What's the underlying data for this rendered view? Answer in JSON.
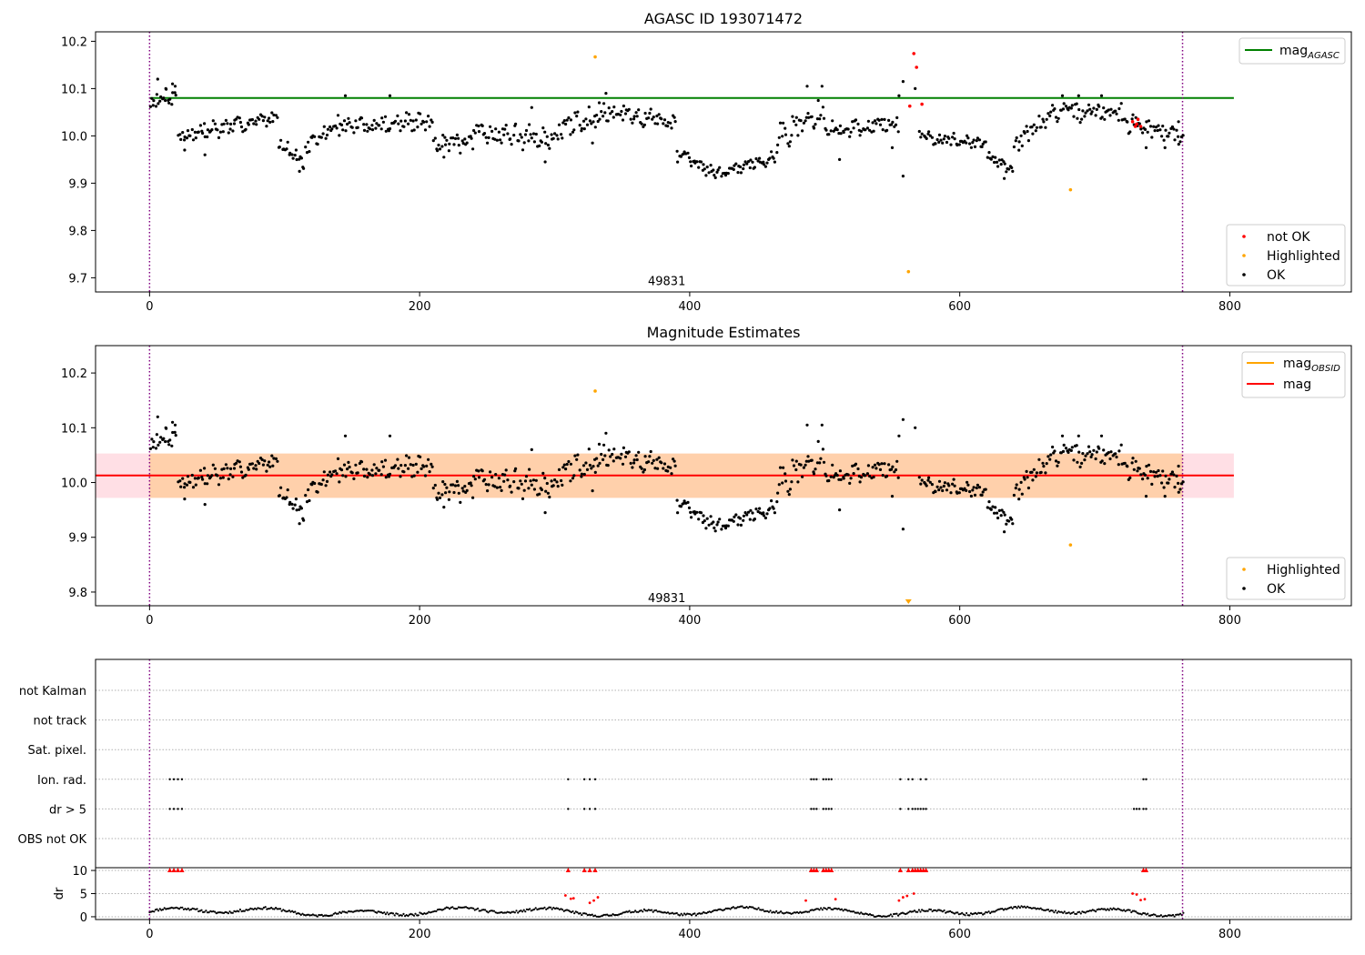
{
  "chart_data": [
    {
      "type": "scatter",
      "title": "AGASC ID 193071472",
      "xlim": [
        -40,
        890
      ],
      "ylim": [
        9.67,
        10.22
      ],
      "xticks": [
        0,
        200,
        400,
        600,
        800
      ],
      "yticks": [
        9.7,
        9.8,
        9.9,
        10.0,
        10.1,
        10.2
      ],
      "ytick_format": 1,
      "vlines": [
        0,
        765
      ],
      "vline_color": "#800080",
      "annotation": {
        "text": "49831",
        "x": 383,
        "y": 9.694
      },
      "hline": {
        "name": "mag",
        "sub": "AGASC",
        "y": 10.08,
        "x_start": 0,
        "x_end": 803,
        "color": "#008000"
      },
      "legend_upper": [
        {
          "name": "mag",
          "sub": "AGASC",
          "color": "#008000"
        }
      ],
      "legend_lower": [
        {
          "name": "not OK",
          "color": "#ff0000"
        },
        {
          "name": "Highlighted",
          "color": "#ffa500"
        },
        {
          "name": "OK",
          "color": "#000000"
        }
      ],
      "series_ok_segments": [
        {
          "x0": 0,
          "x1": 20,
          "v0": 10.07,
          "v1": 10.09,
          "noise": 0.02
        },
        {
          "x0": 21,
          "x1": 60,
          "v0": 10.0,
          "v1": 10.02,
          "noise": 0.02
        },
        {
          "x0": 60,
          "x1": 95,
          "v0": 10.02,
          "v1": 10.04,
          "noise": 0.015
        },
        {
          "x0": 95,
          "x1": 115,
          "v0": 9.99,
          "v1": 9.94,
          "noise": 0.015
        },
        {
          "x0": 115,
          "x1": 140,
          "v0": 9.97,
          "v1": 10.03,
          "noise": 0.02
        },
        {
          "x0": 140,
          "x1": 210,
          "v0": 10.02,
          "v1": 10.03,
          "noise": 0.02
        },
        {
          "x0": 210,
          "x1": 240,
          "v0": 9.99,
          "v1": 9.98,
          "noise": 0.02
        },
        {
          "x0": 240,
          "x1": 300,
          "v0": 10.01,
          "v1": 9.99,
          "noise": 0.025
        },
        {
          "x0": 300,
          "x1": 335,
          "v0": 10.01,
          "v1": 10.05,
          "noise": 0.025
        },
        {
          "x0": 335,
          "x1": 390,
          "v0": 10.05,
          "v1": 10.03,
          "noise": 0.02
        },
        {
          "x0": 390,
          "x1": 420,
          "v0": 9.96,
          "v1": 9.92,
          "noise": 0.015
        },
        {
          "x0": 420,
          "x1": 465,
          "v0": 9.92,
          "v1": 9.96,
          "noise": 0.015
        },
        {
          "x0": 465,
          "x1": 500,
          "v0": 10.0,
          "v1": 10.05,
          "noise": 0.03
        },
        {
          "x0": 500,
          "x1": 555,
          "v0": 10.01,
          "v1": 10.03,
          "noise": 0.02
        },
        {
          "x0": 570,
          "x1": 620,
          "v0": 10.0,
          "v1": 9.98,
          "noise": 0.015
        },
        {
          "x0": 620,
          "x1": 640,
          "v0": 9.96,
          "v1": 9.93,
          "noise": 0.015
        },
        {
          "x0": 640,
          "x1": 665,
          "v0": 9.98,
          "v1": 10.04,
          "noise": 0.02
        },
        {
          "x0": 665,
          "x1": 720,
          "v0": 10.05,
          "v1": 10.05,
          "noise": 0.02
        },
        {
          "x0": 720,
          "x1": 766,
          "v0": 10.03,
          "v1": 10.0,
          "noise": 0.02
        }
      ],
      "series_ok_points": [
        {
          "x": 6,
          "y": 10.12
        },
        {
          "x": 12,
          "y": 10.1
        },
        {
          "x": 17,
          "y": 10.11
        },
        {
          "x": 19,
          "y": 10.105
        },
        {
          "x": 26,
          "y": 9.97
        },
        {
          "x": 41,
          "y": 9.96
        },
        {
          "x": 145,
          "y": 10.085
        },
        {
          "x": 178,
          "y": 10.085
        },
        {
          "x": 111,
          "y": 9.925
        },
        {
          "x": 218,
          "y": 9.955
        },
        {
          "x": 283,
          "y": 10.06
        },
        {
          "x": 293,
          "y": 9.945
        },
        {
          "x": 328,
          "y": 9.985
        },
        {
          "x": 333,
          "y": 10.07
        },
        {
          "x": 338,
          "y": 10.09
        },
        {
          "x": 487,
          "y": 10.105
        },
        {
          "x": 498,
          "y": 10.105
        },
        {
          "x": 511,
          "y": 9.95
        },
        {
          "x": 555,
          "y": 10.085
        },
        {
          "x": 558,
          "y": 10.115
        },
        {
          "x": 558,
          "y": 9.915
        },
        {
          "x": 567,
          "y": 10.1
        },
        {
          "x": 550,
          "y": 9.975
        },
        {
          "x": 633,
          "y": 9.91
        },
        {
          "x": 676,
          "y": 10.085
        },
        {
          "x": 688,
          "y": 10.085
        },
        {
          "x": 705,
          "y": 10.085
        },
        {
          "x": 738,
          "y": 9.975
        },
        {
          "x": 752,
          "y": 9.975
        },
        {
          "x": 762,
          "y": 10.03
        }
      ],
      "series_highlighted": [
        {
          "x": 330,
          "y": 10.167
        },
        {
          "x": 562,
          "y": 9.713
        },
        {
          "x": 682,
          "y": 9.886
        }
      ],
      "series_not_ok": [
        {
          "x": 566,
          "y": 10.174
        },
        {
          "x": 568,
          "y": 10.145
        },
        {
          "x": 563,
          "y": 10.063
        },
        {
          "x": 572,
          "y": 10.067
        },
        {
          "x": 728,
          "y": 10.03
        },
        {
          "x": 730,
          "y": 10.02
        },
        {
          "x": 732,
          "y": 10.035
        },
        {
          "x": 734,
          "y": 10.02
        },
        {
          "x": 731,
          "y": 10.025
        }
      ]
    },
    {
      "type": "scatter",
      "title": "Magnitude Estimates",
      "xlim": [
        -40,
        890
      ],
      "ylim": [
        9.775,
        10.25
      ],
      "xticks": [
        0,
        200,
        400,
        600,
        800
      ],
      "yticks": [
        9.8,
        9.9,
        10.0,
        10.1,
        10.2
      ],
      "ytick_format": 1,
      "vlines": [
        0,
        765
      ],
      "vline_color": "#800080",
      "annotation": {
        "text": "49831",
        "x": 383,
        "y": 9.79
      },
      "mean": {
        "y": 10.013,
        "x_start": -40,
        "x_end": 803,
        "color": "#ff0000"
      },
      "bands": [
        {
          "x0": -40,
          "x1": 803,
          "y0": 9.972,
          "y1": 10.053,
          "color": "#ffc0cb",
          "opacity": 0.5
        },
        {
          "x0": 0,
          "x1": 765,
          "y0": 9.972,
          "y1": 10.053,
          "color": "#ffa500",
          "opacity": 0.25
        }
      ],
      "legend_upper": [
        {
          "name": "mag",
          "sub": "OBSID",
          "color": "#ffa500"
        },
        {
          "name": "mag",
          "sub": "",
          "color": "#ff0000"
        }
      ],
      "legend_lower": [
        {
          "name": "Highlighted",
          "color": "#ffa500"
        },
        {
          "name": "OK",
          "color": "#000000"
        }
      ],
      "series_highlighted": [
        {
          "x": 330,
          "y": 10.167
        },
        {
          "x": 682,
          "y": 9.886
        }
      ],
      "series_highlighted_offscale": [
        {
          "x": 562,
          "y": 9.779
        }
      ]
    },
    {
      "type": "scatter",
      "title": "",
      "xlim": [
        -40,
        890
      ],
      "vlines": [
        0,
        765
      ],
      "vline_color": "#800080",
      "flag_labels": [
        "not Kalman",
        "not track",
        "Sat. pixel.",
        "Ion. rad.",
        "dr > 5",
        "OBS not OK"
      ],
      "flags": {
        "Ion. rad.": [
          15,
          18,
          21,
          24,
          310,
          322,
          326,
          330,
          490,
          492,
          494,
          499,
          501,
          503,
          505,
          556,
          562,
          565,
          571,
          575,
          736,
          738
        ],
        "dr > 5": [
          15,
          18,
          21,
          24,
          310,
          322,
          326,
          330,
          490,
          492,
          494,
          499,
          501,
          503,
          505,
          556,
          562,
          565,
          567,
          569,
          571,
          573,
          575,
          729,
          731,
          733,
          736,
          738
        ]
      },
      "dr": {
        "ylim": [
          -0.6,
          10.6
        ],
        "yticks": [
          0,
          5,
          10
        ],
        "ylabel": "dr",
        "clip_value": 10,
        "clipped_x": [
          15,
          18,
          21,
          24,
          310,
          322,
          326,
          330,
          490,
          492,
          494,
          499,
          501,
          503,
          505,
          556,
          562,
          565,
          567,
          569,
          571,
          573,
          575,
          736,
          738
        ],
        "elevated_points": [
          {
            "x": 308,
            "y": 4.6
          },
          {
            "x": 312,
            "y": 3.9
          },
          {
            "x": 314,
            "y": 4.0
          },
          {
            "x": 326,
            "y": 3.0
          },
          {
            "x": 329,
            "y": 3.5
          },
          {
            "x": 332,
            "y": 4.2
          },
          {
            "x": 486,
            "y": 3.5
          },
          {
            "x": 508,
            "y": 3.8
          },
          {
            "x": 555,
            "y": 3.5
          },
          {
            "x": 558,
            "y": 4.2
          },
          {
            "x": 561,
            "y": 4.5
          },
          {
            "x": 566,
            "y": 5.0
          },
          {
            "x": 728,
            "y": 5.0
          },
          {
            "x": 731,
            "y": 4.8
          },
          {
            "x": 734,
            "y": 3.6
          },
          {
            "x": 737,
            "y": 3.8
          }
        ]
      }
    }
  ]
}
